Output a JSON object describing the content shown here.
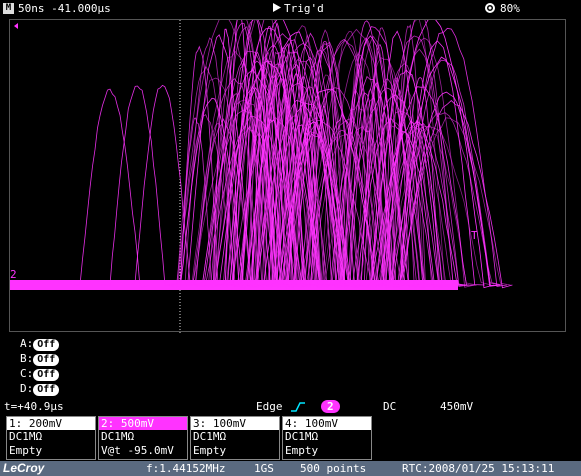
{
  "topbar": {
    "mode_icon": "M",
    "timebase": "50ns -41.000µs",
    "trig_icon": "play-triangle-icon",
    "trig_status": "Trig'd",
    "battery_icon": "gear-icon",
    "battery": "80%"
  },
  "grid": {
    "channel_marker": "2",
    "trigger_marker": "T",
    "trace_color": "#ff33ff"
  },
  "channels_off": [
    {
      "label": "A:",
      "state": "Off"
    },
    {
      "label": "B:",
      "state": "Off"
    },
    {
      "label": "C:",
      "state": "Off"
    },
    {
      "label": "D:",
      "state": "Off"
    }
  ],
  "trigger": {
    "cursor_time": "t=+40.9µs",
    "type": "Edge",
    "source": "2",
    "coupling": "DC",
    "level": "450mV"
  },
  "channels": [
    {
      "header": "1: 200mV",
      "coupling": "DC1MΩ",
      "extra": "Empty",
      "header_bg": "#ffffff",
      "header_fg": "#000000"
    },
    {
      "header": "2: 500mV",
      "coupling": "DC1MΩ",
      "extra": "V@t   -95.0mV",
      "header_bg": "#ff33ff",
      "header_fg": "#ffffff"
    },
    {
      "header": "3: 100mV",
      "coupling": "DC1MΩ",
      "extra": "Empty",
      "header_bg": "#ffffff",
      "header_fg": "#000000"
    },
    {
      "header": "4: 100mV",
      "coupling": "DC1MΩ",
      "extra": "Empty",
      "header_bg": "#ffffff",
      "header_fg": "#000000"
    }
  ],
  "bottombar": {
    "brand": "LeCroy",
    "frequency": "f:1.44152MHz",
    "sample_rate": "1GS",
    "points": "500 points",
    "rtc": "RTC:2008/01/25 15:13:11"
  }
}
